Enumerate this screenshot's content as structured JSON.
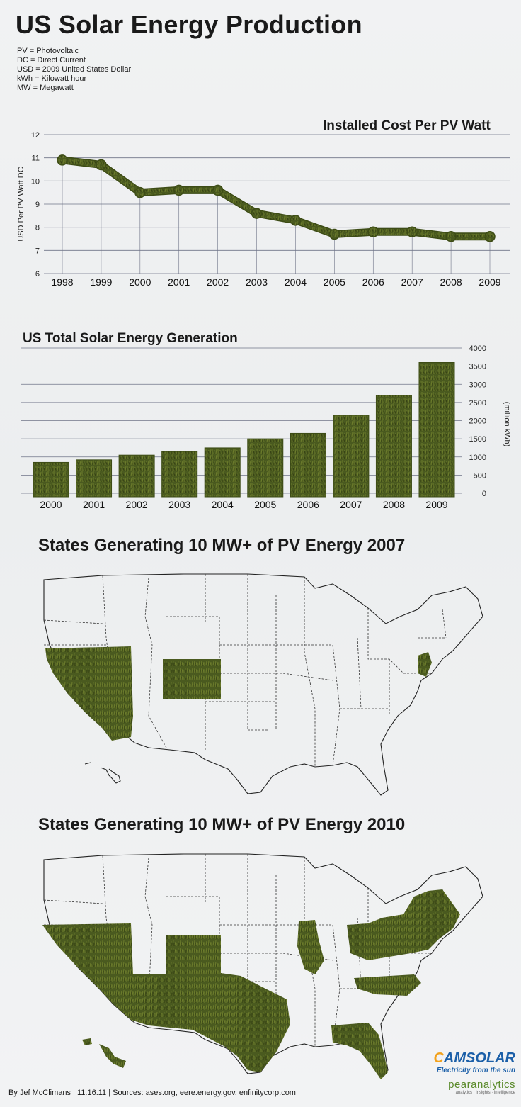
{
  "title": "US Solar Energy Production",
  "legend": [
    "PV = Photovoltaic",
    "DC = Direct Current",
    "USD = 2009 United States Dollar",
    "kWh = Kilowatt hour",
    "MW = Megawatt"
  ],
  "colors": {
    "grass": "#4a5a1f",
    "grass_light": "#6d7d2c",
    "grid": "#6f7488",
    "text": "#1a1a1a"
  },
  "chart_data": [
    {
      "type": "line",
      "title": "Installed Cost Per PV Watt",
      "ylabel": "USD Per PV Watt DC",
      "xlabel": "",
      "x": [
        "1998",
        "1999",
        "2000",
        "2001",
        "2002",
        "2003",
        "2004",
        "2005",
        "2006",
        "2007",
        "2008",
        "2009"
      ],
      "series": [
        {
          "values": [
            10.9,
            10.7,
            9.5,
            9.6,
            9.6,
            8.6,
            8.3,
            7.7,
            7.8,
            7.8,
            7.6,
            7.6
          ]
        }
      ],
      "ylim": [
        6,
        12
      ],
      "yticks": [
        "6",
        "7",
        "8",
        "9",
        "10",
        "11",
        "12"
      ],
      "grid": true
    },
    {
      "type": "bar",
      "title": "US Total Solar Energy Generation",
      "ylabel": "(million kWh)",
      "xlabel": "",
      "categories": [
        "2000",
        "2001",
        "2002",
        "2003",
        "2004",
        "2005",
        "2006",
        "2007",
        "2008",
        "2009"
      ],
      "series": [
        {
          "values": [
            850,
            920,
            1050,
            1150,
            1250,
            1500,
            1650,
            2150,
            2700,
            3600
          ]
        }
      ],
      "ylim": [
        0,
        4000
      ],
      "yticks": [
        "0",
        "500",
        "1000",
        "1500",
        "2000",
        "2500",
        "3000",
        "3500",
        "4000"
      ],
      "grid": true
    }
  ],
  "maps": [
    {
      "title": "States Generating 10 MW+ of PV Energy 2007",
      "states": [
        "California",
        "Nevada",
        "Colorado",
        "New Jersey"
      ]
    },
    {
      "title": "States Generating 10 MW+ of PV Energy 2010",
      "states": [
        "California",
        "Nevada",
        "Arizona",
        "New Mexico",
        "Colorado",
        "Texas",
        "Hawaii",
        "Illinois",
        "Ohio",
        "Pennsylvania",
        "New York",
        "New Jersey",
        "Massachusetts",
        "North Carolina",
        "Florida"
      ]
    }
  ],
  "footer": "By Jef McClimans  |  11.16.11  |  Sources: ases.org, eere.energy.gov, enfinitycorp.com",
  "logos": {
    "cam_c": "C",
    "cam_rest": "AMSOLAR",
    "cam_tagline": "Electricity from the sun",
    "pear_name": "pearanalytics",
    "pear_tagline": "analytics · insights · intelligence"
  }
}
